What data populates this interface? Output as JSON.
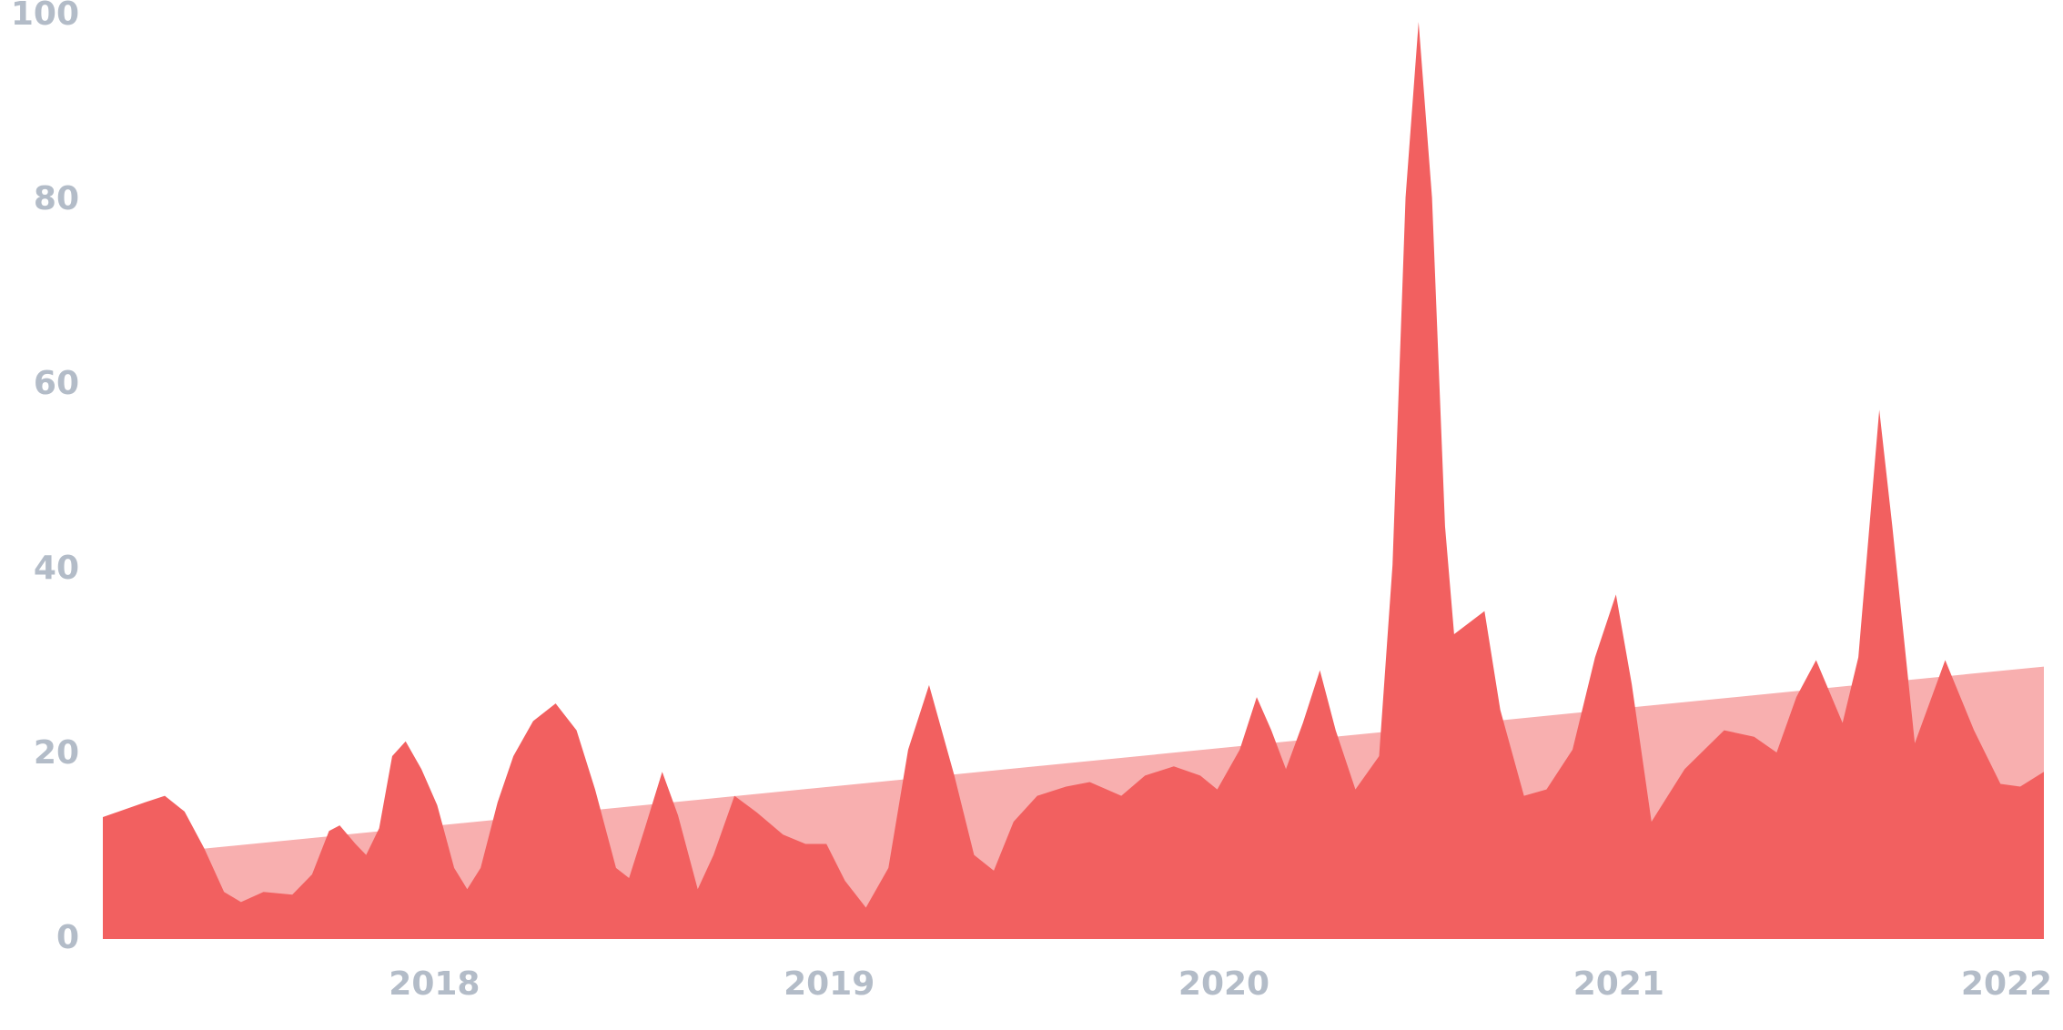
{
  "chart_data": {
    "type": "area",
    "x": [
      2017.16,
      2017.267,
      2017.317,
      2017.367,
      2017.417,
      2017.467,
      2017.51,
      2017.567,
      2017.64,
      2017.69,
      2017.733,
      2017.76,
      2017.8,
      2017.827,
      2017.86,
      2017.893,
      2017.927,
      2017.967,
      2018.007,
      2018.05,
      2018.083,
      2018.117,
      2018.16,
      2018.2,
      2018.25,
      2018.307,
      2018.36,
      2018.407,
      2018.46,
      2018.493,
      2018.533,
      2018.577,
      2018.617,
      2018.667,
      2018.707,
      2018.76,
      2018.817,
      2018.883,
      2018.94,
      2018.993,
      2019.04,
      2019.093,
      2019.15,
      2019.2,
      2019.253,
      2019.317,
      2019.367,
      2019.417,
      2019.467,
      2019.527,
      2019.6,
      2019.66,
      2019.74,
      2019.8,
      2019.873,
      2019.94,
      2019.983,
      2020.04,
      2020.083,
      2020.12,
      2020.157,
      2020.2,
      2020.243,
      2020.283,
      2020.333,
      2020.393,
      2020.427,
      2020.46,
      2020.493,
      2020.527,
      2020.56,
      2020.583,
      2020.66,
      2020.7,
      2020.76,
      2020.817,
      2020.883,
      2020.94,
      2020.993,
      2021.033,
      2021.083,
      2021.167,
      2021.267,
      2021.343,
      2021.4,
      2021.45,
      2021.5,
      2021.567,
      2021.607,
      2021.66,
      2021.693,
      2021.75,
      2021.827,
      2021.9,
      2021.967,
      2022.017,
      2022.077
    ],
    "series": [
      {
        "color": "#f8afaf",
        "x": [
          2017.16,
          2022.077
        ],
        "values": [
          8.7,
          29.5
        ]
      },
      {
        "color": "#f26060",
        "values": [
          13.2,
          14.8,
          15.5,
          13.8,
          9.8,
          5.1,
          4.0,
          5.1,
          4.8,
          7.0,
          11.7,
          12.3,
          10.3,
          9.1,
          12.0,
          19.8,
          21.4,
          18.4,
          14.5,
          7.7,
          5.4,
          7.7,
          14.8,
          19.8,
          23.6,
          25.5,
          22.6,
          16.2,
          7.7,
          6.6,
          12.0,
          18.1,
          13.4,
          5.4,
          9.1,
          15.5,
          13.7,
          11.3,
          10.3,
          10.3,
          6.3,
          3.4,
          7.7,
          20.5,
          27.5,
          17.7,
          9.1,
          7.4,
          12.7,
          15.5,
          16.5,
          17.0,
          15.5,
          17.7,
          18.7,
          17.7,
          16.2,
          20.5,
          26.2,
          22.6,
          18.4,
          23.4,
          29.1,
          22.6,
          16.2,
          19.8,
          40.5,
          80.3,
          99.3,
          80.3,
          44.7,
          33.0,
          35.5,
          24.8,
          15.5,
          16.2,
          20.5,
          30.5,
          37.3,
          27.6,
          12.7,
          18.4,
          22.6,
          21.9,
          20.2,
          26.2,
          30.2,
          23.4,
          30.5,
          57.3,
          44.7,
          21.2,
          30.2,
          22.6,
          16.8,
          16.5,
          18.1
        ]
      }
    ],
    "xlim": [
      2017.16,
      2022.077
    ],
    "xticks": [
      2018,
      2019,
      2020,
      2021,
      2022
    ],
    "ylim": [
      0,
      100
    ],
    "yticks": [
      0,
      20,
      40,
      60,
      80,
      100
    ]
  }
}
